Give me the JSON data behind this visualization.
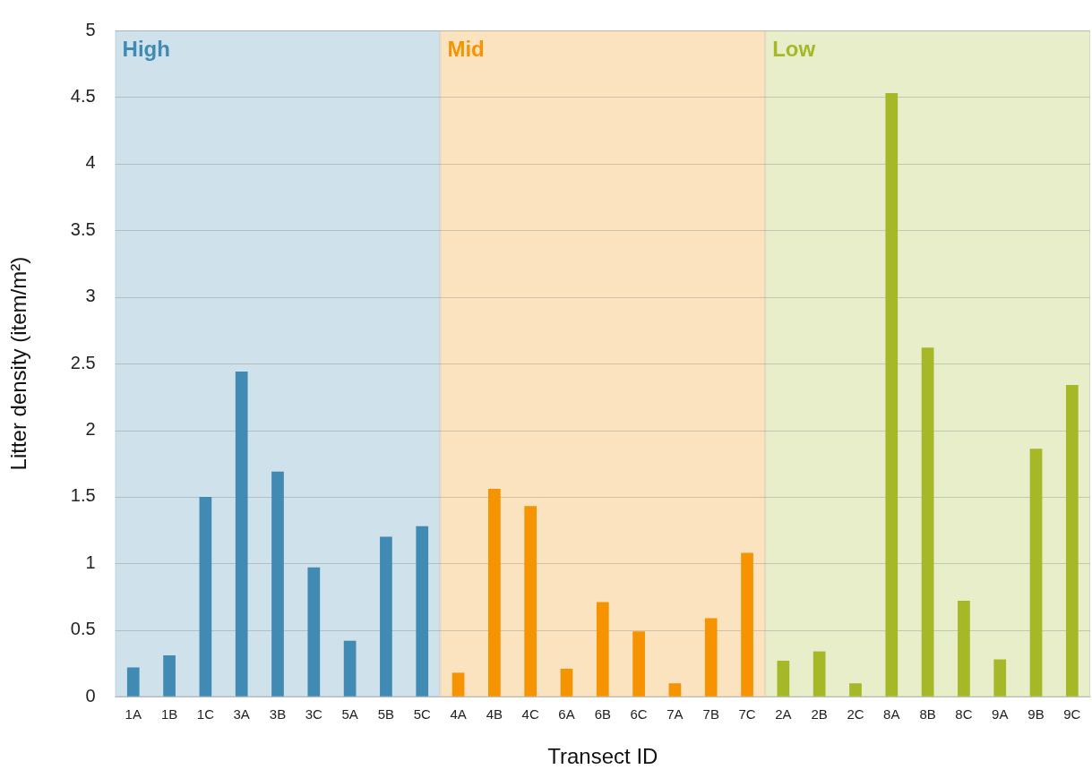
{
  "chart_data": {
    "type": "bar",
    "xlabel": "Transect ID",
    "ylabel": "Litter density (item/m²)",
    "categories": [
      "1A",
      "1B",
      "1C",
      "3A",
      "3B",
      "3C",
      "5A",
      "5B",
      "5C",
      "4A",
      "4B",
      "4C",
      "6A",
      "6B",
      "6C",
      "7A",
      "7B",
      "7C",
      "2A",
      "2B",
      "2C",
      "8A",
      "8B",
      "8C",
      "9A",
      "9B",
      "9C"
    ],
    "values": [
      0.22,
      0.31,
      1.5,
      2.44,
      1.69,
      0.97,
      0.42,
      1.2,
      1.28,
      0.18,
      1.56,
      1.43,
      0.21,
      0.71,
      0.49,
      0.1,
      0.59,
      1.08,
      0.27,
      0.34,
      0.1,
      4.53,
      2.62,
      0.72,
      0.28,
      1.86,
      2.34
    ],
    "colors": [
      "#418ab3",
      "#418ab3",
      "#418ab3",
      "#418ab3",
      "#418ab3",
      "#418ab3",
      "#418ab3",
      "#418ab3",
      "#418ab3",
      "#f59300",
      "#f59300",
      "#f59300",
      "#f59300",
      "#f59300",
      "#f59300",
      "#f59300",
      "#f59300",
      "#f59300",
      "#a6b727",
      "#a6b727",
      "#a6b727",
      "#a6b727",
      "#a6b727",
      "#a6b727",
      "#a6b727",
      "#a6b727",
      "#a6b727"
    ],
    "ylim": [
      0,
      5
    ],
    "yticks": [
      0,
      0.5,
      1,
      1.5,
      2,
      2.5,
      3,
      3.5,
      4,
      4.5,
      5
    ],
    "grid": "y",
    "bands": [
      {
        "axis": "x",
        "from": "1A",
        "to": "5C",
        "label": "High",
        "color": "#cfe1ea"
      },
      {
        "axis": "x",
        "from": "4A",
        "to": "7C",
        "label": "Mid",
        "color": "#fce3c0"
      },
      {
        "axis": "x",
        "from": "2A",
        "to": "9C",
        "label": "Low",
        "color": "#e8edca"
      }
    ]
  }
}
